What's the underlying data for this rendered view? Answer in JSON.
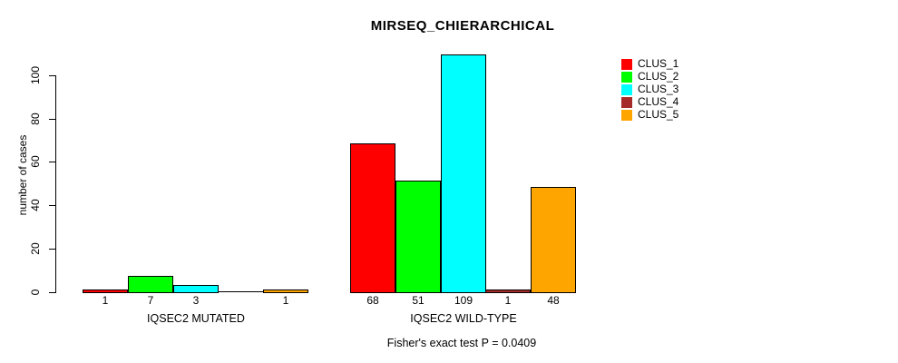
{
  "title": "MIRSEQ_CHIERARCHICAL",
  "chart_data": {
    "type": "bar",
    "title": "MIRSEQ_CHIERARCHICAL",
    "xlabel": "",
    "ylabel": "number of cases",
    "yticks": [
      0,
      20,
      40,
      60,
      80,
      100
    ],
    "ylim": [
      0,
      109
    ],
    "grid": false,
    "legend_position": "top-right",
    "categories": [
      "IQSEC2 MUTATED",
      "IQSEC2 WILD-TYPE"
    ],
    "series": [
      {
        "name": "CLUS_1",
        "color": "#FF0000",
        "values": [
          1,
          68
        ]
      },
      {
        "name": "CLUS_2",
        "color": "#00FF00",
        "values": [
          7,
          51
        ]
      },
      {
        "name": "CLUS_3",
        "color": "#00FFFF",
        "values": [
          3,
          109
        ]
      },
      {
        "name": "CLUS_4",
        "color": "#A52A2A",
        "values": [
          0,
          1
        ]
      },
      {
        "name": "CLUS_5",
        "color": "#FFA500",
        "values": [
          1,
          48
        ]
      }
    ],
    "bar_value_labels": {
      "IQSEC2 MUTATED": [
        "1",
        "7",
        "3",
        "",
        "1"
      ],
      "IQSEC2 WILD-TYPE": [
        "68",
        "51",
        "109",
        "1",
        "48"
      ]
    },
    "annotation": "Fisher's exact test P = 0.0409"
  },
  "colors": {
    "background": "#FFFFFF",
    "axis": "#000000",
    "text": "#000000",
    "bar_border": "#000000"
  }
}
